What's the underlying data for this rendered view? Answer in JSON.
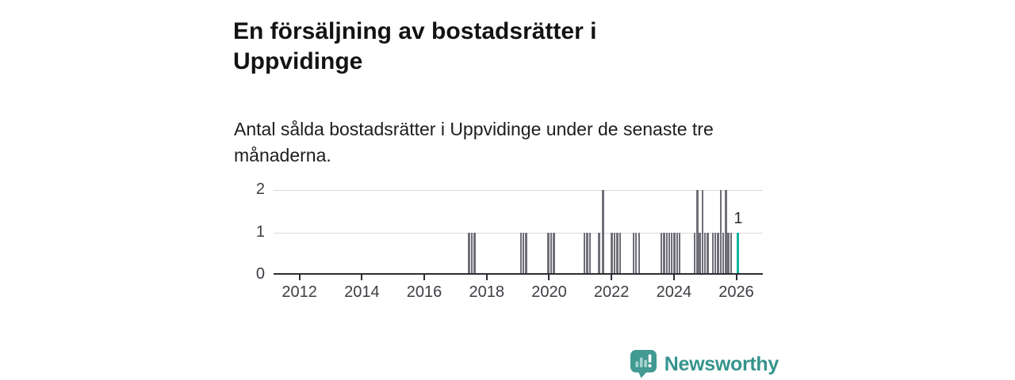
{
  "header": {
    "title": "En försäljning av bostadsrätter i Uppvidinge",
    "subtitle": "Antal sålda bostadsrätter i Uppvidinge under de senaste tre månaderna."
  },
  "chart_data": {
    "type": "bar",
    "title": "En försäljning av bostadsrätter i Uppvidinge",
    "subtitle": "Antal sålda bostadsrätter i Uppvidinge under de senaste tre månaderna.",
    "xlabel": "",
    "ylabel": "",
    "xlim": [
      2011.17,
      2026.85
    ],
    "ylim": [
      0,
      2
    ],
    "yticks": [
      0,
      1,
      2
    ],
    "xticks": [
      2012,
      2014,
      2016,
      2018,
      2020,
      2022,
      2024,
      2026
    ],
    "grid": true,
    "legend": false,
    "bar_color": "#6f6f79",
    "highlight_color": "#12b2a1",
    "annotation": {
      "text": "1",
      "x": 2026.06,
      "y": 1
    },
    "bars": [
      {
        "x": 2017.43,
        "v": 1
      },
      {
        "x": 2017.52,
        "v": 1
      },
      {
        "x": 2017.61,
        "v": 1
      },
      {
        "x": 2019.1,
        "v": 1
      },
      {
        "x": 2019.18,
        "v": 1
      },
      {
        "x": 2019.27,
        "v": 1
      },
      {
        "x": 2019.98,
        "v": 1
      },
      {
        "x": 2020.06,
        "v": 1
      },
      {
        "x": 2020.15,
        "v": 1
      },
      {
        "x": 2021.13,
        "v": 1
      },
      {
        "x": 2021.22,
        "v": 1
      },
      {
        "x": 2021.31,
        "v": 1
      },
      {
        "x": 2021.6,
        "v": 1
      },
      {
        "x": 2021.73,
        "v": 2
      },
      {
        "x": 2022.01,
        "v": 1
      },
      {
        "x": 2022.1,
        "v": 1
      },
      {
        "x": 2022.19,
        "v": 1
      },
      {
        "x": 2022.27,
        "v": 1
      },
      {
        "x": 2022.71,
        "v": 1
      },
      {
        "x": 2022.79,
        "v": 1
      },
      {
        "x": 2022.88,
        "v": 1
      },
      {
        "x": 2023.6,
        "v": 1
      },
      {
        "x": 2023.68,
        "v": 1
      },
      {
        "x": 2023.77,
        "v": 1
      },
      {
        "x": 2023.85,
        "v": 1
      },
      {
        "x": 2023.93,
        "v": 1
      },
      {
        "x": 2024.02,
        "v": 1
      },
      {
        "x": 2024.1,
        "v": 1
      },
      {
        "x": 2024.18,
        "v": 1
      },
      {
        "x": 2024.67,
        "v": 1
      },
      {
        "x": 2024.75,
        "v": 2
      },
      {
        "x": 2024.83,
        "v": 1
      },
      {
        "x": 2024.92,
        "v": 2
      },
      {
        "x": 2025.0,
        "v": 1
      },
      {
        "x": 2025.08,
        "v": 1
      },
      {
        "x": 2025.25,
        "v": 1
      },
      {
        "x": 2025.33,
        "v": 1
      },
      {
        "x": 2025.42,
        "v": 1
      },
      {
        "x": 2025.5,
        "v": 2
      },
      {
        "x": 2025.58,
        "v": 1
      },
      {
        "x": 2025.67,
        "v": 2
      },
      {
        "x": 2025.75,
        "v": 1
      },
      {
        "x": 2025.83,
        "v": 1
      },
      {
        "x": 2026.06,
        "v": 1,
        "highlight": true
      }
    ]
  },
  "branding": {
    "name": "Newsworthy",
    "icon": "newsworthy-bubble-chart-icon",
    "wordmark_color": "#35948c",
    "icon_color": "#429a92"
  }
}
